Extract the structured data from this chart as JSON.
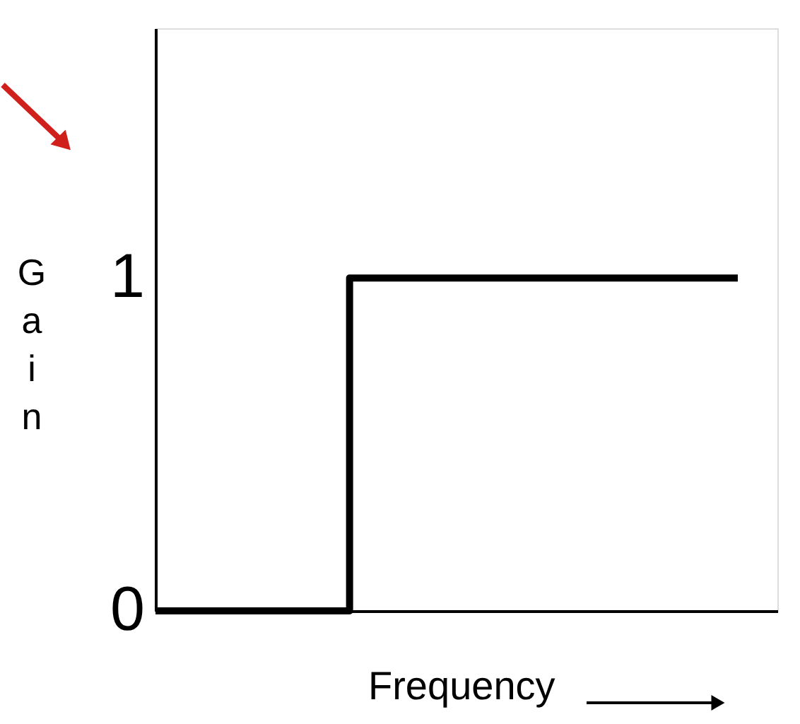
{
  "chart_data": {
    "type": "step",
    "xlabel": "Frequency",
    "ylabel": "Gain",
    "categories": [
      null,
      null,
      null,
      null
    ],
    "values": [
      0,
      1,
      1,
      1
    ],
    "color": "#000000",
    "ylim": [
      0,
      1.75
    ],
    "yticks": [
      0,
      1
    ],
    "grid": false,
    "marker": "none",
    "line_style": "solid"
  }
}
